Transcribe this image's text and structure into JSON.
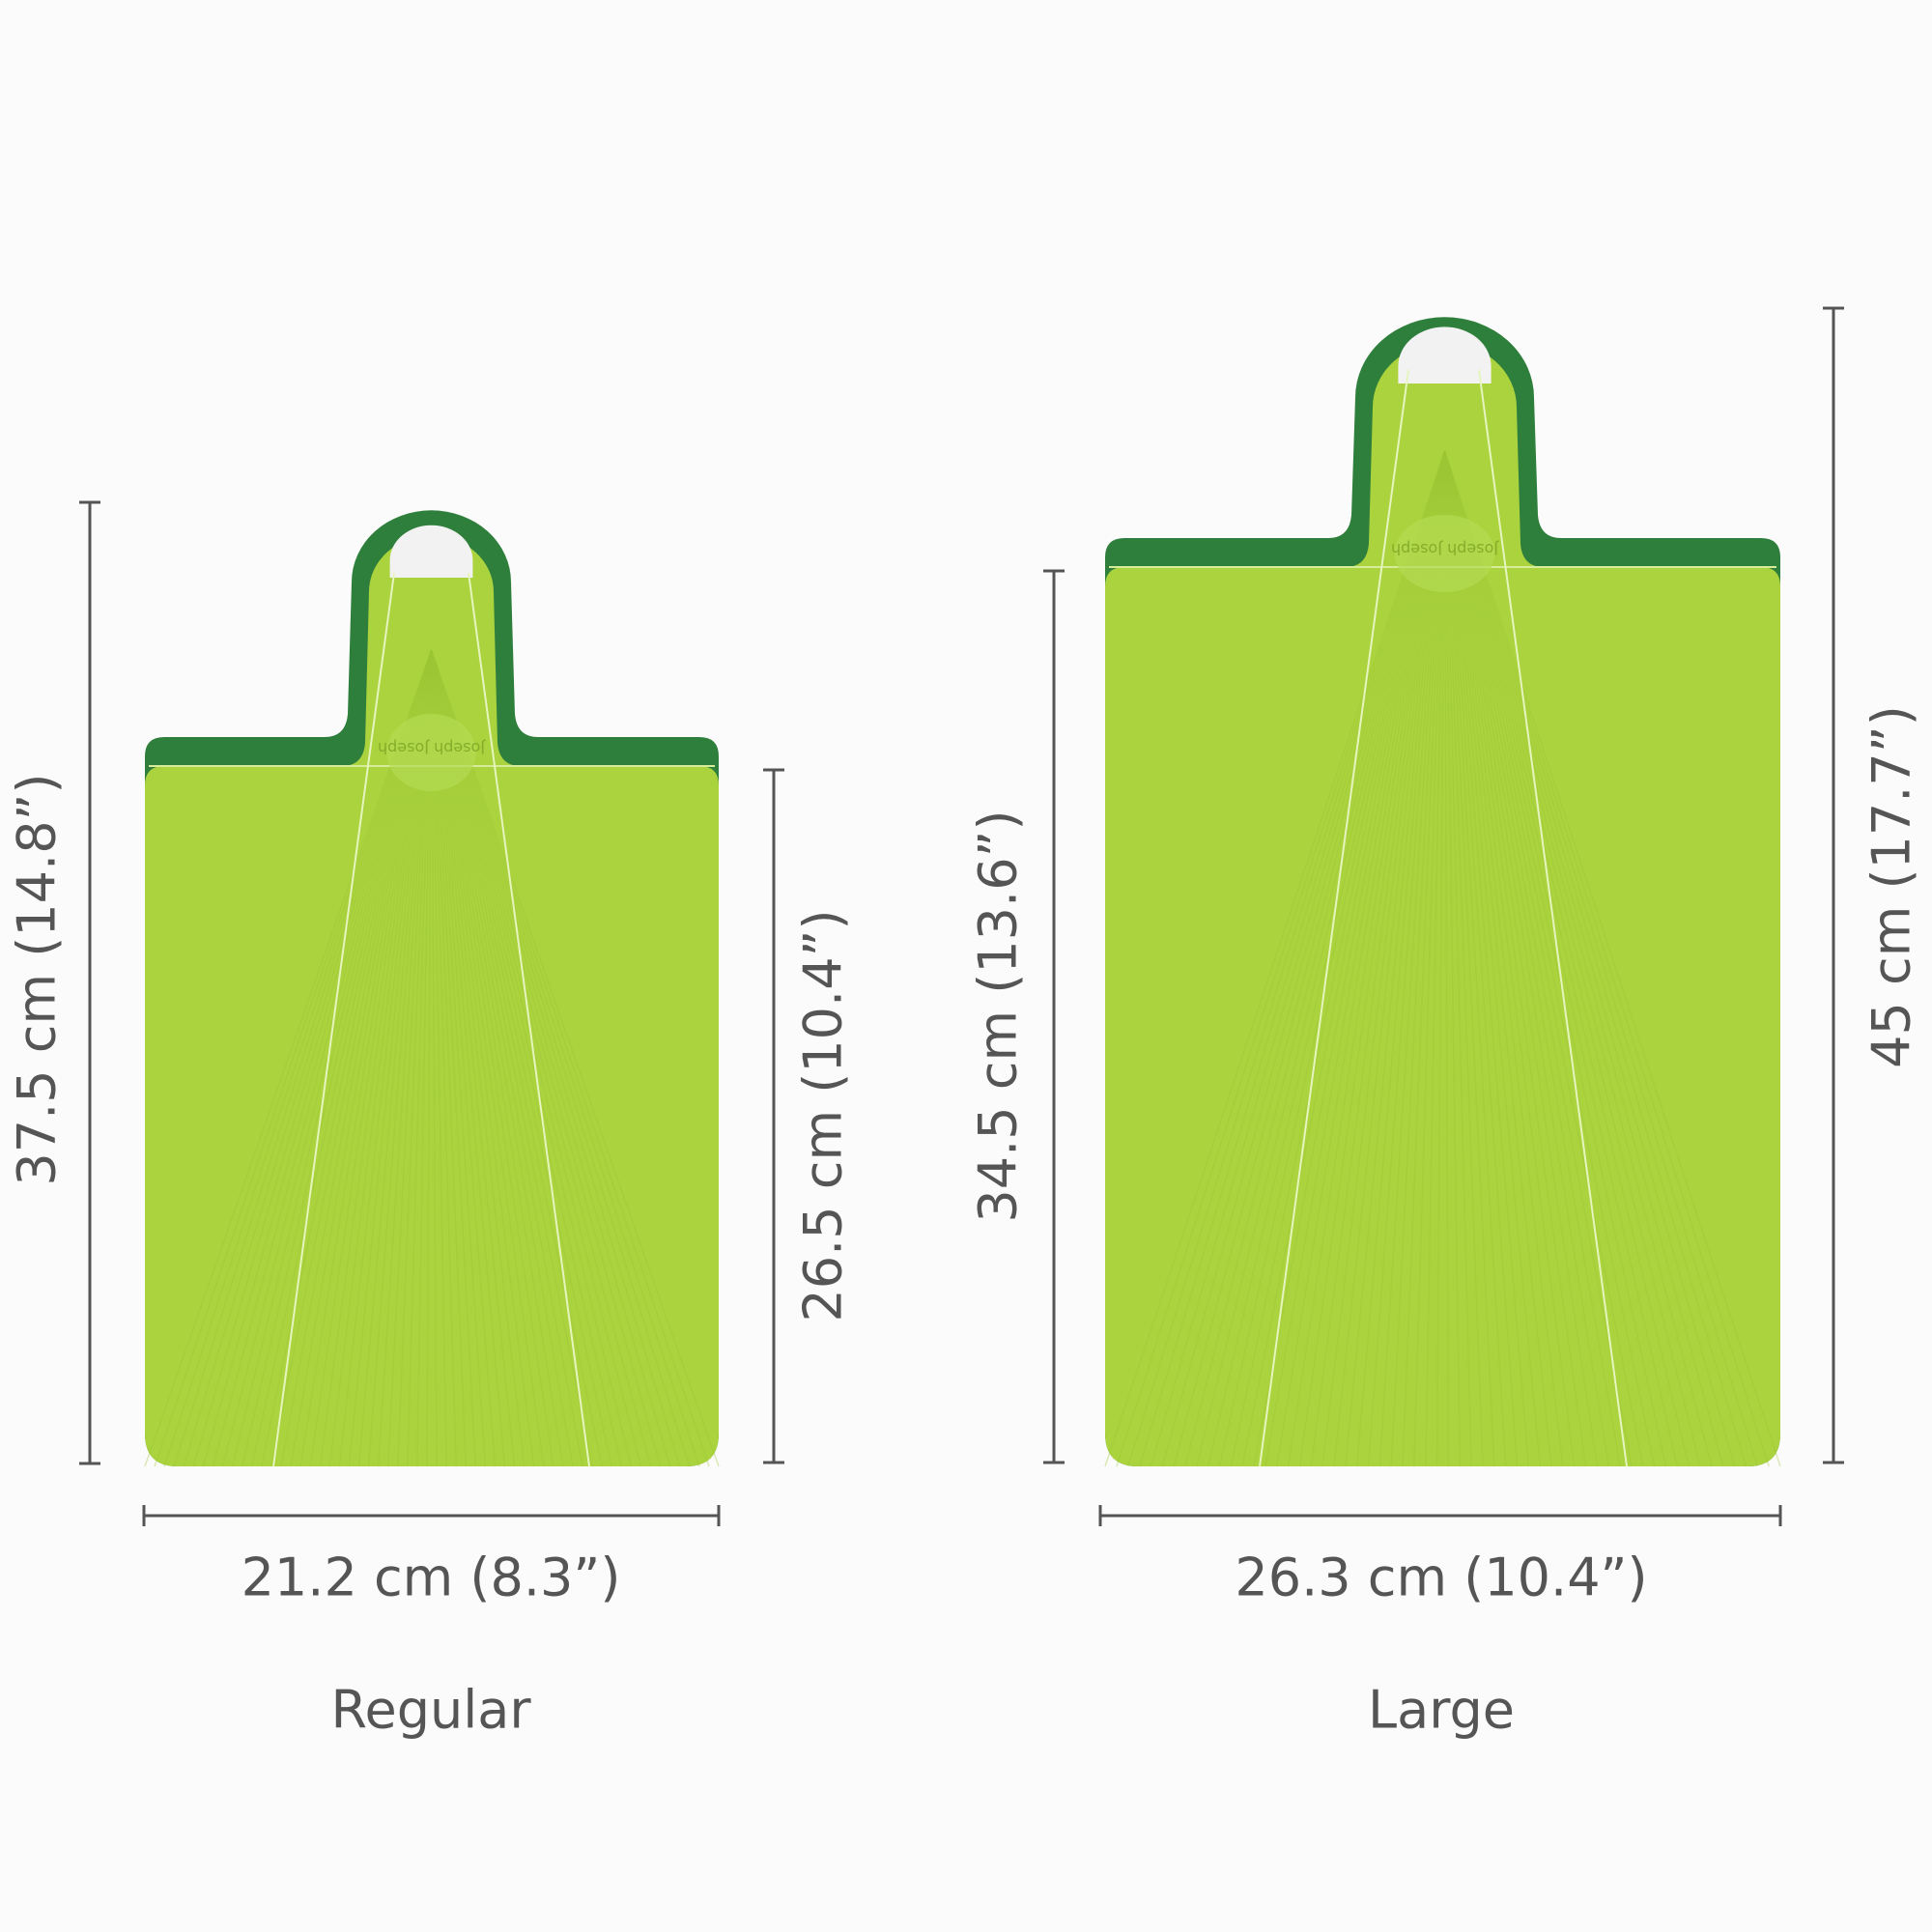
{
  "colors": {
    "board_light": "#aad33e",
    "board_rim": "#2f7f3c",
    "dimension_line": "#555555",
    "text": "#555555"
  },
  "boards": [
    {
      "name": "Regular",
      "width": "21.2 cm (8.3”)",
      "total_height": "37.5 cm (14.8”)",
      "board_height": "26.5 cm (10.4”)",
      "logo": "Joseph Joseph"
    },
    {
      "name": "Large",
      "width": "26.3 cm (10.4”)",
      "total_height": "45 cm (17.7”)",
      "board_height": "34.5 cm (13.6”)",
      "logo": "Joseph Joseph"
    }
  ]
}
